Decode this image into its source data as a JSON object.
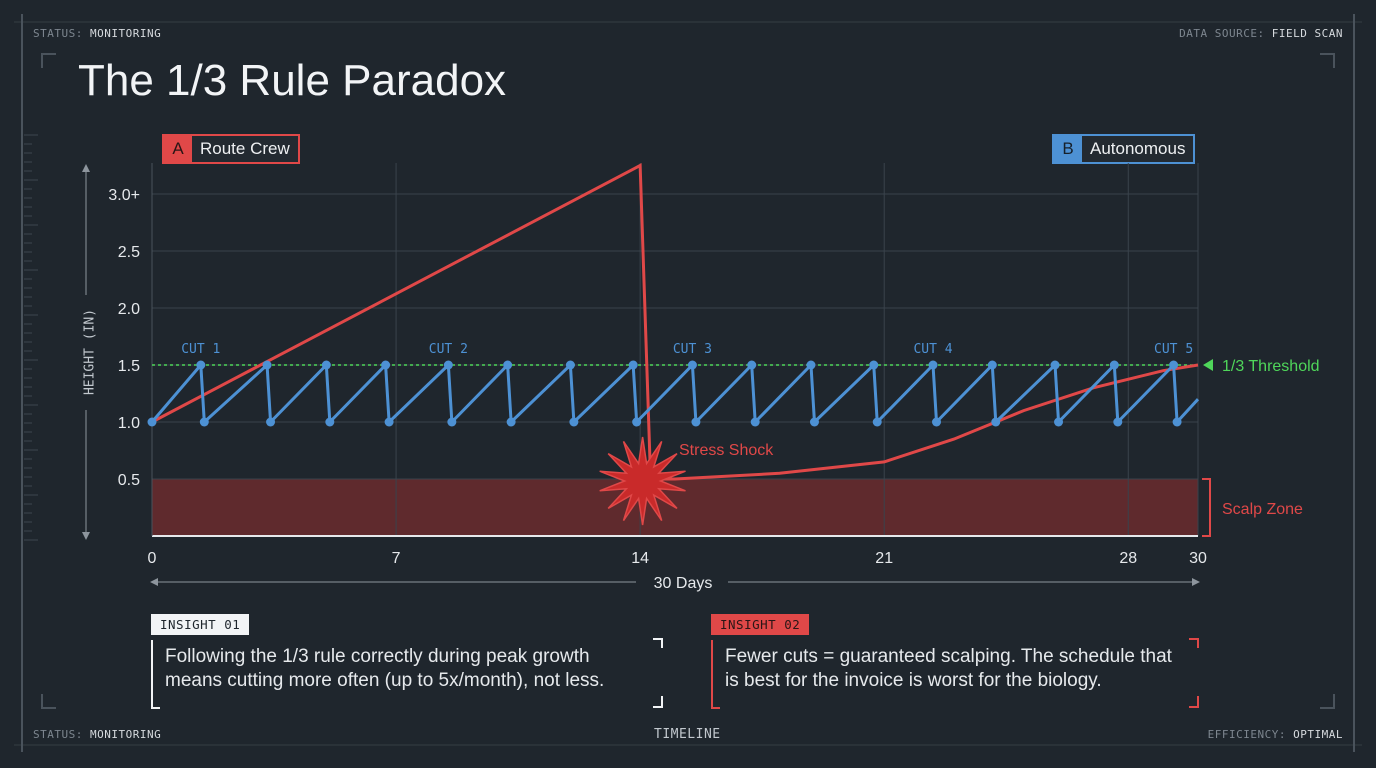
{
  "header": {
    "status_label": "STATUS:",
    "status_value": "MONITORING",
    "source_label": "DATA SOURCE:",
    "source_value": "FIELD SCAN",
    "title": "The 1/3 Rule Paradox"
  },
  "footer": {
    "status_label": "STATUS:",
    "status_value": "MONITORING",
    "center_label": "TIMELINE",
    "efficiency_label": "EFFICIENCY:",
    "efficiency_value": "OPTIMAL"
  },
  "legend": {
    "a_key": "A",
    "a_label": "Route Crew",
    "b_key": "B",
    "b_label": "Autonomous"
  },
  "colors": {
    "route_crew": "#e04848",
    "autonomous": "#4d91d4",
    "threshold": "#4fd65a",
    "scalp_zone": "#6b2b2e",
    "grid": "#3a434c",
    "background": "#1f262d"
  },
  "chart_data": {
    "type": "line",
    "ylabel": "HEIGHT (IN)",
    "xlabel": "30 Days",
    "xlim": [
      0,
      30
    ],
    "ylim": [
      0,
      3.25
    ],
    "x_ticks": [
      0,
      7,
      14,
      21,
      28,
      30
    ],
    "y_ticks": [
      0.5,
      1.0,
      1.5,
      2.0,
      2.5,
      3.0
    ],
    "y_tick_labels": [
      "0.5",
      "1.0",
      "1.5",
      "2.0",
      "2.5",
      "3.0+"
    ],
    "grid": true,
    "series": [
      {
        "name": "Route Crew",
        "key": "A",
        "x": [
          0,
          14,
          14.3,
          15,
          18,
          21,
          23,
          25,
          27,
          29,
          30
        ],
        "y": [
          1.0,
          3.25,
          0.5,
          0.5,
          0.55,
          0.65,
          0.85,
          1.1,
          1.3,
          1.45,
          1.5
        ]
      },
      {
        "name": "Autonomous",
        "key": "B",
        "x": [
          0,
          1.4,
          1.5,
          3.3,
          3.4,
          5.0,
          5.1,
          6.7,
          6.8,
          8.5,
          8.6,
          10.2,
          10.3,
          12.0,
          12.1,
          13.8,
          13.9,
          15.5,
          15.6,
          17.2,
          17.3,
          18.9,
          19.0,
          20.7,
          20.8,
          22.4,
          22.5,
          24.1,
          24.2,
          25.9,
          26.0,
          27.6,
          27.7,
          29.3,
          29.4,
          30
        ],
        "y": [
          1.0,
          1.5,
          1.0,
          1.5,
          1.0,
          1.5,
          1.0,
          1.5,
          1.0,
          1.5,
          1.0,
          1.5,
          1.0,
          1.5,
          1.0,
          1.5,
          1.0,
          1.5,
          1.0,
          1.5,
          1.0,
          1.5,
          1.0,
          1.5,
          1.0,
          1.5,
          1.0,
          1.5,
          1.0,
          1.5,
          1.0,
          1.5,
          1.0,
          1.5,
          1.0,
          1.2
        ]
      }
    ],
    "threshold": {
      "y": 1.5,
      "label": "1/3 Threshold"
    },
    "scalp_zone": {
      "y_max": 0.5,
      "label": "Scalp Zone"
    },
    "annotations": [
      {
        "text": "CUT 1",
        "x": 1.4
      },
      {
        "text": "CUT 2",
        "x": 8.5
      },
      {
        "text": "CUT 3",
        "x": 15.5
      },
      {
        "text": "CUT 4",
        "x": 22.4
      },
      {
        "text": "CUT 5",
        "x": 29.3
      },
      {
        "text": "Stress Shock",
        "x": 14.3,
        "y": 0.5
      }
    ]
  },
  "insights": [
    {
      "tag": "INSIGHT 01",
      "text": "Following the 1/3 rule correctly during peak growth means cutting more often (up to 5x/month), not less."
    },
    {
      "tag": "INSIGHT 02",
      "text": "Fewer cuts = guaranteed scalping. The schedule that is best for the invoice is worst for the biology."
    }
  ]
}
